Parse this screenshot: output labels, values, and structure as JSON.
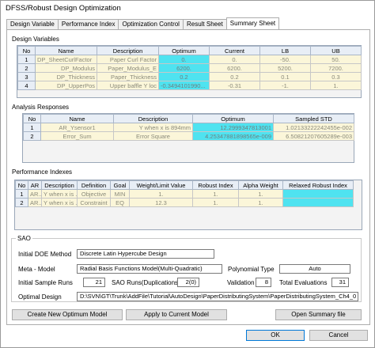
{
  "window": {
    "title": "DFSS/Robust Design Optimization"
  },
  "tabs": [
    {
      "label": "Design Variable"
    },
    {
      "label": "Performance Index"
    },
    {
      "label": "Optimization Control"
    },
    {
      "label": "Result Sheet"
    },
    {
      "label": "Summary Sheet"
    }
  ],
  "design_variables": {
    "label": "Design Variables",
    "headers": [
      "No",
      "Name",
      "Description",
      "Optimum",
      "Current",
      "LB",
      "UB"
    ],
    "rows": [
      [
        "1",
        "DP_SheetCurlFactor",
        "Paper Curl Factor",
        "0.",
        "0.",
        "-50.",
        "50."
      ],
      [
        "2",
        "DP_Modulus",
        "Paper_Modulus_E",
        "6200.",
        "6200.",
        "5200.",
        "7200."
      ],
      [
        "3",
        "DP_Thickness",
        "Paper_Thickness",
        "0.2",
        "0.2",
        "0.1",
        "0.3"
      ],
      [
        "4",
        "DP_UpperPos",
        "Upper baffle Y loc",
        "-0.3494101990...",
        "-0.31",
        "-1.",
        "1."
      ]
    ]
  },
  "analysis_responses": {
    "label": "Analysis Responses",
    "headers": [
      "No",
      "Name",
      "Description",
      "Optimum",
      "Sampled STD"
    ],
    "rows": [
      [
        "1",
        "AR_Ysensor1",
        "Y when x is 894mm",
        "12.2999347813001",
        "1.02133222242455e-002"
      ],
      [
        "2",
        "Error_Sum",
        "Error Square",
        "4.25347881898565e-009",
        "6.50821207605289e-003"
      ]
    ]
  },
  "performance_indexes": {
    "label": "Performance Indexes",
    "headers": [
      "No",
      "AR",
      "Description",
      "Definition",
      "Goal",
      "Weight/Limit Value",
      "Robust Index",
      "Alpha Weight",
      "Relaxed Robust Index"
    ],
    "rows": [
      [
        "1",
        "AR...",
        "Y when x is ...",
        "Objective",
        "MIN",
        "1.",
        "1.",
        "1.",
        ""
      ],
      [
        "2",
        "AR...",
        "Y when x is ...",
        "Constraint",
        "EQ",
        "12.3",
        "1.",
        "1.",
        ""
      ]
    ]
  },
  "sao": {
    "group_label": "SAO",
    "initial_doe_label": "Initial DOE Method",
    "initial_doe_value": "Discrete Latin Hypercube Design",
    "meta_model_label": "Meta - Model",
    "meta_model_value": "Radial Basis Functions Model(Multi-Quadratic)",
    "polynomial_type_label": "Polynomial Type",
    "polynomial_type_value": "Auto",
    "initial_sample_runs_label": "Initial Sample Runs",
    "initial_sample_runs_value": "21",
    "sao_runs_label": "SAO Runs(Duplications)",
    "sao_runs_value": "2(0)",
    "validation_label": "Validation",
    "validation_value": "8",
    "total_evaluations_label": "Total Evaluations",
    "total_evaluations_value": "31",
    "optimal_design_label": "Optimal Design",
    "optimal_design_value": "D:\\SVN\\GT\\Trunk\\AddFile\\Tutorial\\AutoDesign\\PaperDistributingSystem\\PaperDistributingSystem_Ch4_0"
  },
  "buttons": {
    "create_new_optimum_model": "Create New Optimum Model",
    "apply_to_current_model": "Apply to Current Model",
    "open_summary_file": "Open Summary file",
    "ok": "OK",
    "cancel": "Cancel"
  },
  "colors": {
    "optimum_highlight": "#4fe3f0",
    "readonly_cell": "#fbf6d9",
    "header_bg": "#e8eef6"
  }
}
